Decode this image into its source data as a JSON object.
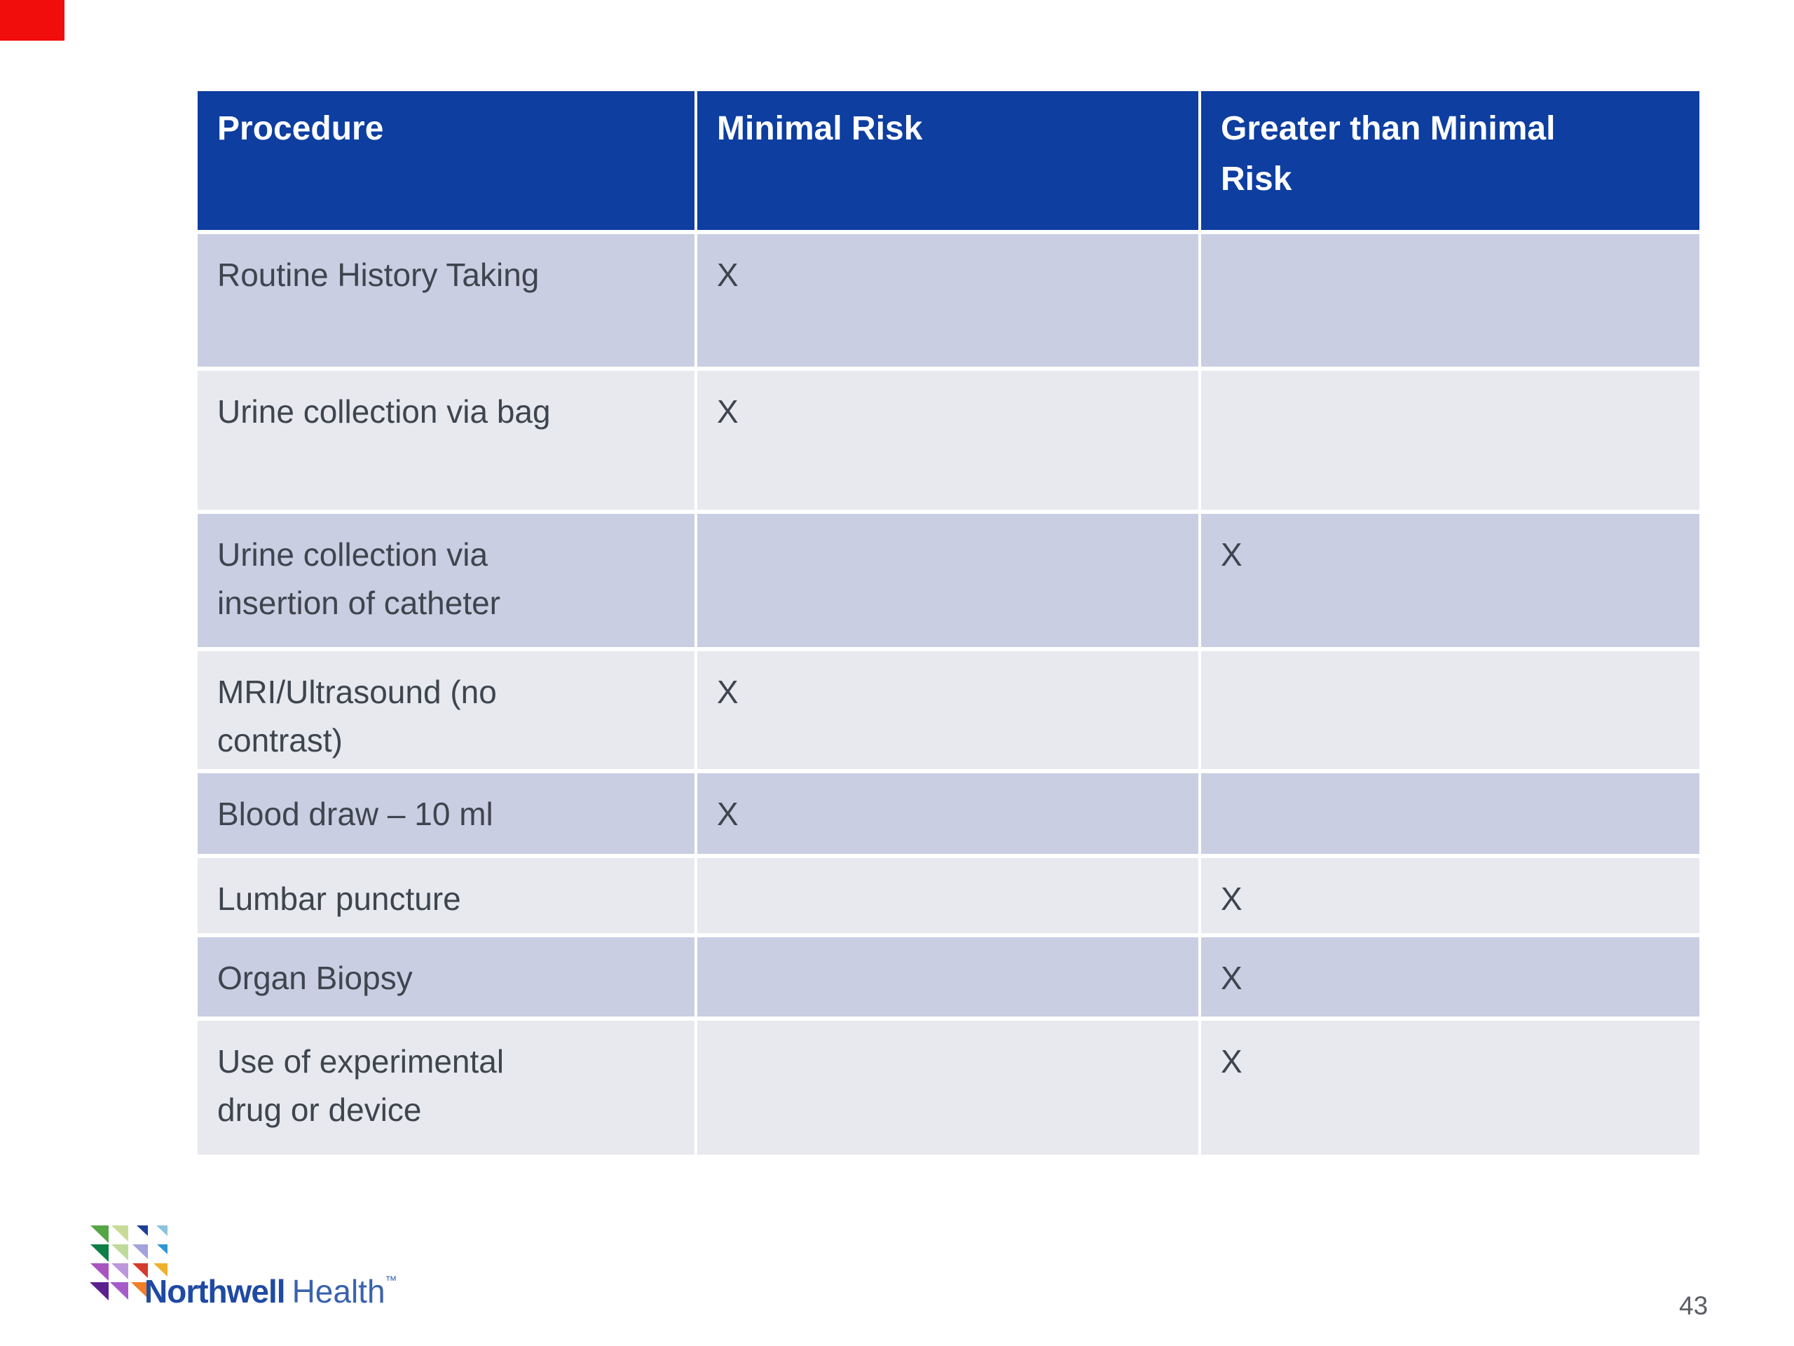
{
  "table": {
    "columns": [
      "Procedure",
      "Minimal Risk",
      "Greater than Minimal\nRisk"
    ],
    "column_keys": [
      "procedure",
      "minimal_risk",
      "greater_than_minimal_risk"
    ],
    "rows": [
      {
        "procedure": "Routine History Taking",
        "minimal_risk": "X",
        "greater_than_minimal_risk": ""
      },
      {
        "procedure": "Urine collection via bag",
        "minimal_risk": "X",
        "greater_than_minimal_risk": ""
      },
      {
        "procedure": "Urine collection via\ninsertion of catheter",
        "minimal_risk": "",
        "greater_than_minimal_risk": "X"
      },
      {
        "procedure": "MRI/Ultrasound (no\ncontrast)",
        "minimal_risk": "X",
        "greater_than_minimal_risk": ""
      },
      {
        "procedure": "Blood draw – 10 ml",
        "minimal_risk": "X",
        "greater_than_minimal_risk": ""
      },
      {
        "procedure": "Lumbar puncture",
        "minimal_risk": "",
        "greater_than_minimal_risk": "X"
      },
      {
        "procedure": "Organ Biopsy",
        "minimal_risk": "",
        "greater_than_minimal_risk": "X"
      },
      {
        "procedure": "Use of experimental\ndrug or device",
        "minimal_risk": "",
        "greater_than_minimal_risk": "X"
      }
    ]
  },
  "footer": {
    "logo": {
      "name": "Northwell",
      "suffix": "Health",
      "trademark": "™",
      "triangle_rows": [
        [
          {
            "color": "#56A545",
            "size": 26
          },
          {
            "color": "#C8DB96",
            "size": 24
          },
          {
            "color": "#1C3F96",
            "size": 16
          },
          {
            "color": "#8CC4DE",
            "size": 16
          }
        ],
        [
          {
            "color": "#0E7F46",
            "size": 26
          },
          {
            "color": "#BFDB9B",
            "size": 24
          },
          {
            "color": "#A2A3DC",
            "size": 22
          },
          {
            "color": "#2D96D6",
            "size": 15
          }
        ],
        [
          {
            "color": "#A855C2",
            "size": 26
          },
          {
            "color": "#BD97DC",
            "size": 24
          },
          {
            "color": "#D63A2C",
            "size": 22
          },
          {
            "color": "#EFB02A",
            "size": 20
          }
        ],
        [
          {
            "color": "#5B2191",
            "size": 27
          },
          {
            "color": "#A55CC8",
            "size": 26
          },
          {
            "color": "#F07E28",
            "size": 24
          }
        ]
      ]
    },
    "page_number": "43"
  },
  "colors": {
    "header_bg": "#0D3EA0",
    "row_dark": "#C9CEE2",
    "row_light": "#E7E9EF",
    "header_text": "#FFFFFF",
    "body_text": "#3F454E",
    "brand_blue": "#1F4AA3",
    "brand_blue_light": "#3A62AE",
    "page_number_color": "#5B5E63",
    "red_marker": "#F20D0D"
  }
}
